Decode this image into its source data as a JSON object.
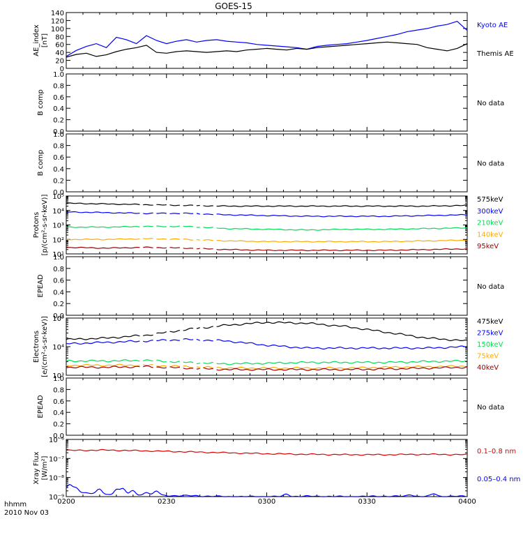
{
  "title": "GOES-15",
  "time_axis": {
    "corner_label": "hhmm",
    "date_label": "2010 Nov 03",
    "ticks": [
      "0200",
      "0230",
      "0300",
      "0330",
      "0400"
    ]
  },
  "colors": {
    "black": "#000000",
    "blue": "#0000ff",
    "green": "#00dd55",
    "orange": "#ffaa00",
    "darkred": "#a00000",
    "red": "#dd0000"
  },
  "chart_data": [
    {
      "type": "line",
      "panel": "ae",
      "ylabel_lines": [
        "AE_index",
        "[nT]"
      ],
      "ylim": [
        0,
        140
      ],
      "yticks": [
        "0",
        "20",
        "40",
        "60",
        "80",
        "100",
        "120",
        "140"
      ],
      "x_minutes_range": [
        0,
        120
      ],
      "series": [
        {
          "name": "Kyoto AE",
          "color": "#0000ff",
          "x": [
            0,
            3,
            6,
            9,
            12,
            15,
            18,
            21,
            24,
            27,
            30,
            33,
            36,
            39,
            42,
            45,
            48,
            51,
            54,
            57,
            60,
            63,
            66,
            69,
            72,
            75,
            78,
            81,
            84,
            87,
            90,
            93,
            96,
            99,
            102,
            105,
            108,
            111,
            114,
            117,
            120
          ],
          "values": [
            30,
            45,
            55,
            62,
            52,
            78,
            72,
            62,
            82,
            70,
            62,
            68,
            72,
            66,
            70,
            72,
            68,
            66,
            64,
            60,
            58,
            56,
            54,
            52,
            48,
            55,
            58,
            60,
            62,
            66,
            70,
            75,
            80,
            85,
            92,
            96,
            100,
            106,
            110,
            118,
            95
          ]
        },
        {
          "name": "Themis AE",
          "color": "#000000",
          "x": [
            0,
            3,
            6,
            9,
            12,
            15,
            18,
            21,
            24,
            27,
            30,
            33,
            36,
            39,
            42,
            45,
            48,
            51,
            54,
            57,
            60,
            63,
            66,
            69,
            72,
            75,
            78,
            81,
            84,
            87,
            90,
            93,
            96,
            99,
            102,
            105,
            108,
            111,
            114,
            117,
            120
          ],
          "values": [
            28,
            35,
            38,
            30,
            34,
            42,
            48,
            52,
            58,
            40,
            38,
            42,
            44,
            42,
            40,
            42,
            44,
            42,
            46,
            48,
            50,
            48,
            46,
            50,
            48,
            52,
            54,
            56,
            58,
            60,
            62,
            64,
            66,
            64,
            62,
            60,
            52,
            48,
            44,
            50,
            62
          ]
        }
      ]
    },
    {
      "type": "line",
      "panel": "bcomp1",
      "ylabel_lines": [
        "B comp"
      ],
      "ylim": [
        0,
        1
      ],
      "yticks": [
        "0.0",
        "0.2",
        "0.4",
        "0.6",
        "0.8",
        "1.0"
      ],
      "status": "No data"
    },
    {
      "type": "line",
      "panel": "bcomp2",
      "ylabel_lines": [
        "B comp"
      ],
      "ylim": [
        0,
        1
      ],
      "yticks": [
        "0.0",
        "0.2",
        "0.4",
        "0.6",
        "0.8",
        "1.0"
      ],
      "status": "No data"
    },
    {
      "type": "line",
      "panel": "protons",
      "ylabel_lines": [
        "Protons",
        "[p/(cm²-s-sr-keV)]"
      ],
      "log": true,
      "ylim_exp": [
        1,
        5
      ],
      "yticks": [
        "10¹",
        "10²",
        "10³",
        "10⁴",
        "10⁵"
      ],
      "gap_minutes": [
        [
          22,
          23
        ],
        [
          26,
          27
        ],
        [
          30,
          31
        ],
        [
          34,
          35
        ],
        [
          38,
          39
        ],
        [
          40,
          41
        ],
        [
          44,
          45
        ]
      ],
      "series": [
        {
          "name": "575keV",
          "color": "#000000",
          "values_log10": [
            4.5,
            4.45,
            4.4,
            4.35,
            4.3,
            4.3,
            4.3,
            4.3,
            4.3,
            4.3,
            4.35
          ]
        },
        {
          "name": "300keV",
          "color": "#0000ff",
          "values_log10": [
            3.9,
            3.85,
            3.8,
            3.8,
            3.7,
            3.65,
            3.6,
            3.6,
            3.6,
            3.65,
            3.7
          ]
        },
        {
          "name": "210keV",
          "color": "#00dd55",
          "values_log10": [
            2.85,
            2.85,
            2.9,
            2.9,
            2.75,
            2.7,
            2.65,
            2.7,
            2.7,
            2.75,
            2.8
          ]
        },
        {
          "name": "140keV",
          "color": "#ffaa00",
          "values_log10": [
            2.0,
            2.0,
            2.05,
            2.0,
            1.9,
            1.85,
            1.85,
            1.85,
            1.85,
            1.9,
            1.95
          ]
        },
        {
          "name": "95keV",
          "color": "#a00000",
          "values_log10": [
            1.45,
            1.4,
            1.45,
            1.4,
            1.3,
            1.25,
            1.25,
            1.25,
            1.25,
            1.3,
            1.35
          ]
        }
      ]
    },
    {
      "type": "line",
      "panel": "epead1",
      "ylabel_lines": [
        "EPEAD"
      ],
      "ylim": [
        0,
        1
      ],
      "yticks": [
        "0.0",
        "0.2",
        "0.4",
        "0.6",
        "0.8",
        "1.0"
      ],
      "status": "No data"
    },
    {
      "type": "line",
      "panel": "electrons",
      "ylabel_lines": [
        "Electrons",
        "[e/(cm²-s-sr-keV)]"
      ],
      "log": true,
      "ylim_exp": [
        3,
        5
      ],
      "yticks": [
        "10³",
        "10⁴",
        "10⁵"
      ],
      "gap_minutes": [
        [
          22,
          23
        ],
        [
          26,
          27
        ],
        [
          30,
          31
        ],
        [
          34,
          35
        ],
        [
          38,
          39
        ],
        [
          40,
          41
        ],
        [
          44,
          45
        ]
      ],
      "series": [
        {
          "name": "475keV",
          "color": "#000000",
          "values_log10": [
            4.25,
            4.3,
            4.4,
            4.6,
            4.75,
            4.85,
            4.82,
            4.7,
            4.5,
            4.3,
            4.2
          ]
        },
        {
          "name": "275keV",
          "color": "#0000ff",
          "values_log10": [
            4.1,
            4.15,
            4.2,
            4.25,
            4.2,
            4.05,
            3.95,
            3.95,
            3.95,
            3.95,
            4.0
          ]
        },
        {
          "name": "150keV",
          "color": "#00dd55",
          "values_log10": [
            3.5,
            3.5,
            3.52,
            3.45,
            3.4,
            3.42,
            3.45,
            3.45,
            3.45,
            3.48,
            3.5
          ]
        },
        {
          "name": "75keV",
          "color": "#ffaa00",
          "values_log10": [
            3.35,
            3.35,
            3.35,
            3.3,
            3.25,
            3.25,
            3.25,
            3.25,
            3.28,
            3.3,
            3.32
          ]
        },
        {
          "name": "40keV",
          "color": "#a00000",
          "values_log10": [
            3.28,
            3.28,
            3.3,
            3.25,
            3.2,
            3.2,
            3.2,
            3.2,
            3.22,
            3.25,
            3.28
          ]
        }
      ]
    },
    {
      "type": "line",
      "panel": "epead2",
      "ylabel_lines": [
        "EPEAD"
      ],
      "ylim": [
        0,
        1
      ],
      "yticks": [
        "0.0",
        "0.2",
        "0.4",
        "0.6",
        "0.8",
        "1.0"
      ],
      "status": "No data"
    },
    {
      "type": "line",
      "panel": "xray",
      "ylabel_lines": [
        "Xray Flux",
        "[W/m²]"
      ],
      "log": true,
      "ylim_exp": [
        -9,
        -6
      ],
      "yticks": [
        "10⁻⁹",
        "10⁻⁸",
        "10⁻⁷",
        "10⁻⁶"
      ],
      "series": [
        {
          "name": "0.1–0.8 nm",
          "color": "#dd0000",
          "values_log10": [
            -6.58,
            -6.56,
            -6.6,
            -6.65,
            -6.7,
            -6.75,
            -6.78,
            -6.8,
            -6.8,
            -6.78,
            -6.8
          ]
        },
        {
          "name": "0.05–0.4 nm",
          "color": "#0000ff",
          "values_log10": [
            -8.7,
            -8.9,
            -8.95,
            -8.95,
            -9.0,
            -9.0,
            -8.98,
            -9.0,
            -8.98,
            -8.99,
            -8.98
          ]
        }
      ]
    }
  ]
}
